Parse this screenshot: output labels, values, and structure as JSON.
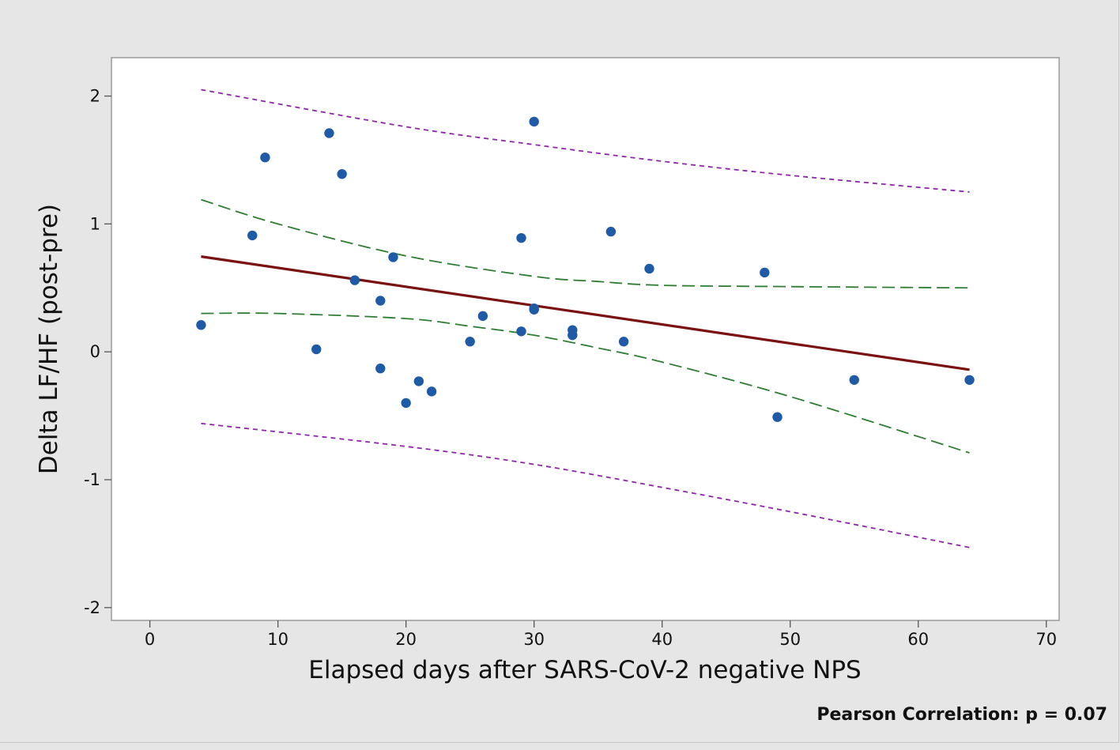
{
  "chart_data": {
    "type": "scatter",
    "title": "",
    "xlabel": "Elapsed days after SARS-CoV-2 negative NPS",
    "ylabel": "Delta LF/HF (post-pre)",
    "xlim": [
      -3,
      71
    ],
    "ylim": [
      -2.1,
      2.3
    ],
    "xticks": [
      0,
      10,
      20,
      30,
      40,
      50,
      60,
      70
    ],
    "yticks": [
      -2,
      -1,
      0,
      1,
      2
    ],
    "grid": false,
    "legend": "none",
    "points": {
      "name": "observations",
      "color": "#1f5aa6",
      "x": [
        4,
        8,
        9,
        13,
        14,
        15,
        16,
        18,
        18,
        19,
        20,
        21,
        22,
        25,
        26,
        29,
        29,
        30,
        30,
        30,
        33,
        33,
        36,
        37,
        39,
        48,
        49,
        55,
        64
      ],
      "y": [
        0.21,
        0.91,
        1.52,
        0.02,
        1.71,
        1.39,
        0.56,
        0.4,
        -0.13,
        0.74,
        -0.4,
        -0.23,
        -0.31,
        0.08,
        0.28,
        0.89,
        0.16,
        1.8,
        0.33,
        0.34,
        0.17,
        0.13,
        0.94,
        0.08,
        0.65,
        0.62,
        -0.51,
        -0.22,
        -0.22
      ]
    },
    "lines": [
      {
        "name": "regression fit",
        "style": "solid",
        "color": "#7a1010",
        "x": [
          4,
          64
        ],
        "y": [
          0.745,
          -0.14
        ]
      },
      {
        "name": "95% CI upper",
        "style": "dashed",
        "color": "#2e7d32",
        "x": [
          4,
          10,
          20,
          30,
          35,
          40,
          50,
          64
        ],
        "y": [
          1.19,
          1.0,
          0.75,
          0.59,
          0.55,
          0.52,
          0.51,
          0.5
        ]
      },
      {
        "name": "95% CI lower",
        "style": "dashed",
        "color": "#2e7d32",
        "x": [
          4,
          10,
          20,
          25,
          30,
          35,
          40,
          50,
          64
        ],
        "y": [
          0.3,
          0.3,
          0.26,
          0.2,
          0.13,
          0.03,
          -0.08,
          -0.35,
          -0.79
        ]
      },
      {
        "name": "95% PI upper",
        "style": "dotted",
        "color": "#8e24aa",
        "x": [
          4,
          20,
          30,
          40,
          50,
          64
        ],
        "y": [
          2.05,
          1.76,
          1.62,
          1.49,
          1.38,
          1.25
        ]
      },
      {
        "name": "95% PI lower",
        "style": "dotted",
        "color": "#8e24aa",
        "x": [
          4,
          20,
          30,
          40,
          50,
          64
        ],
        "y": [
          -0.56,
          -0.74,
          -0.88,
          -1.06,
          -1.25,
          -1.53
        ]
      }
    ],
    "annotation": "Pearson Correlation: p = 0.07"
  }
}
